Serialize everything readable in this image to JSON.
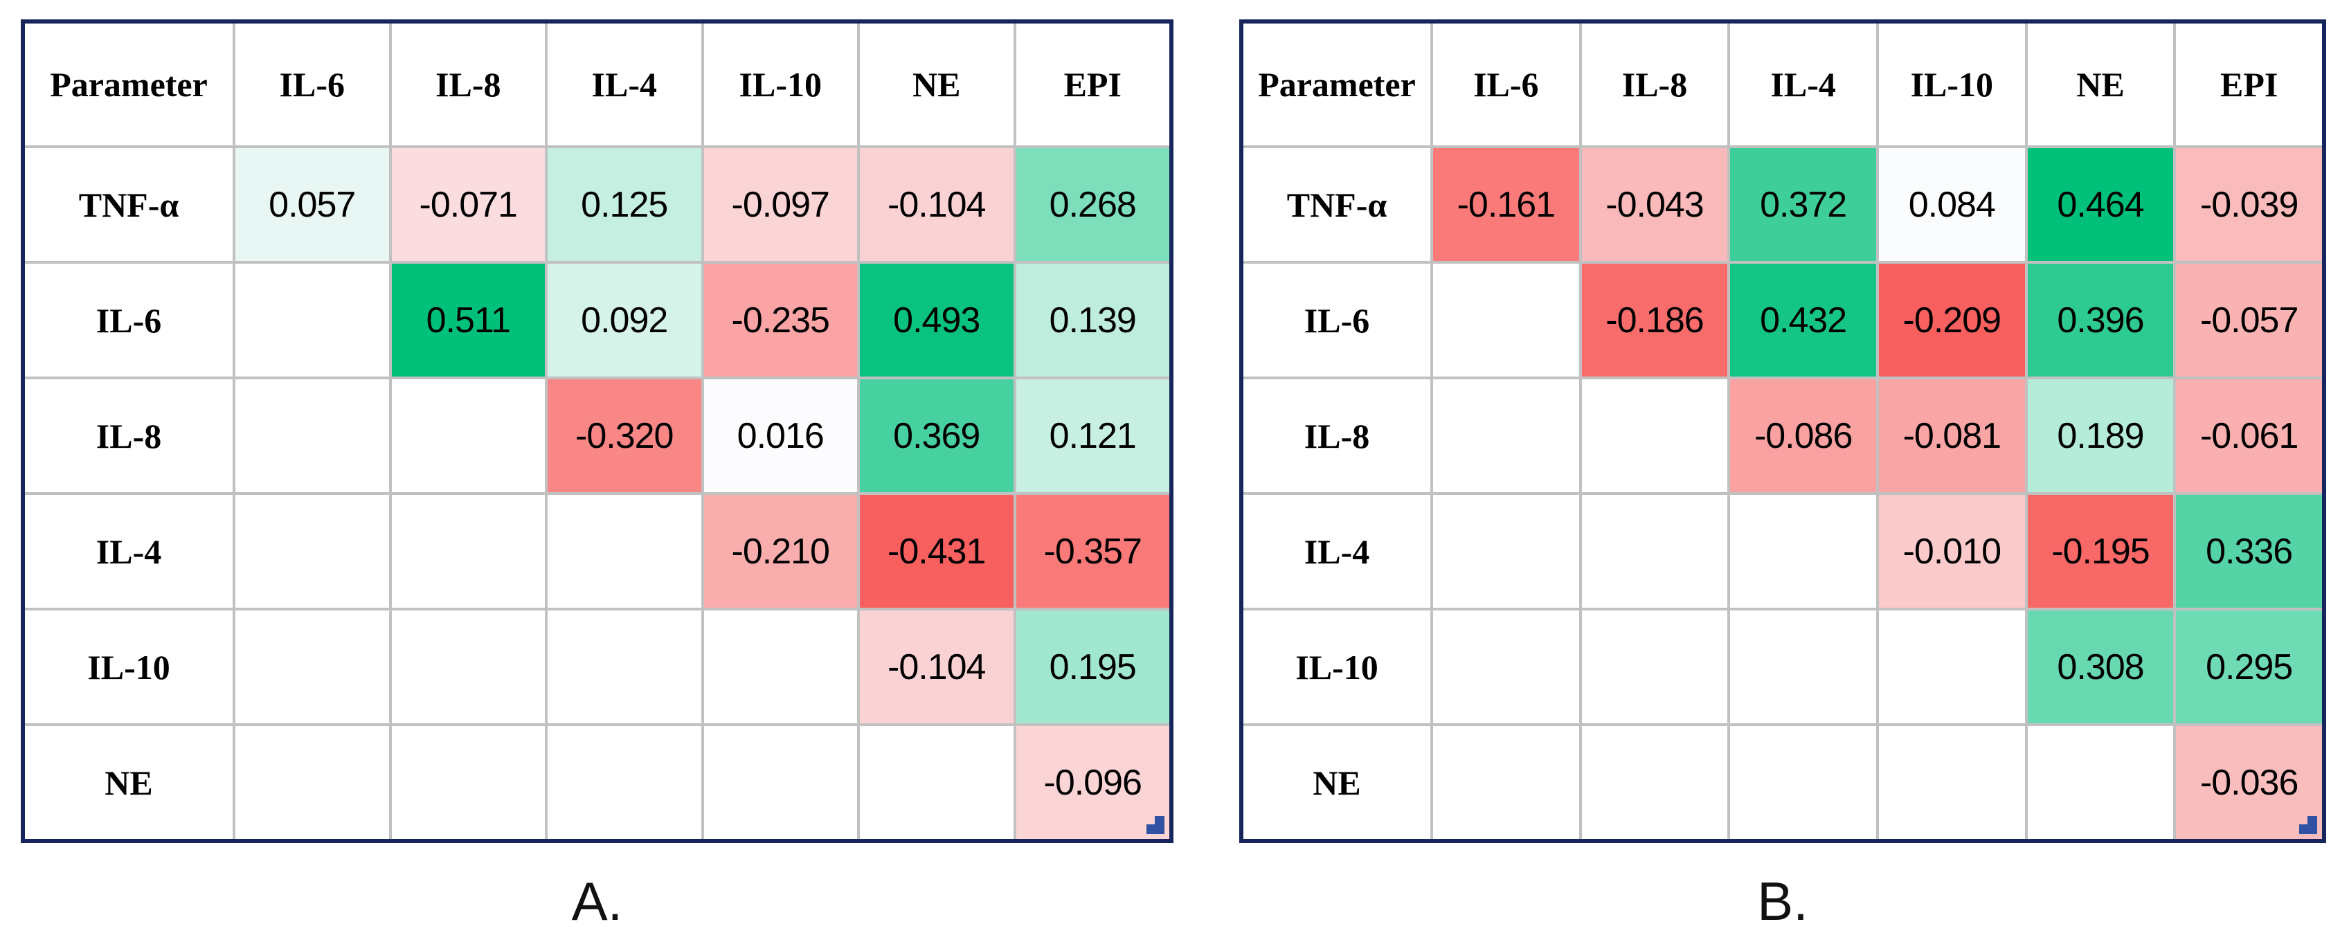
{
  "figure_name": "cytokine-correlation-heatmaps",
  "colors": {
    "outer_border_navy": "#16265C",
    "gridline_gray": "#C1C1C1",
    "positive_end_green": "#00C07A",
    "negative_end_red": "#F8605F",
    "mid_white": "#FCFCFE",
    "resize_handle_blue": "#3152A3",
    "text_black": "#000000"
  },
  "chart_data": [
    {
      "type": "heatmap",
      "panel_label": "A.",
      "title": "",
      "columns": [
        "Parameter",
        "IL-6",
        "IL-8",
        "IL-4",
        "IL-10",
        "NE",
        "EPI"
      ],
      "rows": [
        "TNF-α",
        "IL-6",
        "IL-8",
        "IL-4",
        "IL-10",
        "NE"
      ],
      "values": [
        [
          0.057,
          -0.071,
          0.125,
          -0.097,
          -0.104,
          0.268
        ],
        [
          null,
          0.511,
          0.092,
          -0.235,
          0.493,
          0.139
        ],
        [
          null,
          null,
          -0.32,
          0.016,
          0.369,
          0.121
        ],
        [
          null,
          null,
          null,
          -0.21,
          -0.431,
          -0.357
        ],
        [
          null,
          null,
          null,
          null,
          -0.104,
          0.195
        ],
        [
          null,
          null,
          null,
          null,
          null,
          -0.096
        ]
      ],
      "value_format": "3-decimals",
      "color_scale": {
        "negative_end": "#F8605F",
        "mid_color": "#FCFCFE",
        "positive_end": "#00C07A",
        "midpoint": "mean",
        "min_maps_to": "negative_end",
        "max_maps_to": "positive_end"
      }
    },
    {
      "type": "heatmap",
      "panel_label": "B.",
      "title": "",
      "columns": [
        "Parameter",
        "IL-6",
        "IL-8",
        "IL-4",
        "IL-10",
        "NE",
        "EPI"
      ],
      "rows": [
        "TNF-α",
        "IL-6",
        "IL-8",
        "IL-4",
        "IL-10",
        "NE"
      ],
      "values": [
        [
          -0.161,
          -0.043,
          0.372,
          0.084,
          0.464,
          -0.039
        ],
        [
          null,
          -0.186,
          0.432,
          -0.209,
          0.396,
          -0.057
        ],
        [
          null,
          null,
          -0.086,
          -0.081,
          0.189,
          -0.061
        ],
        [
          null,
          null,
          null,
          -0.01,
          -0.195,
          0.336
        ],
        [
          null,
          null,
          null,
          null,
          0.308,
          0.295
        ],
        [
          null,
          null,
          null,
          null,
          null,
          -0.036
        ]
      ],
      "value_format": "3-decimals",
      "color_scale": {
        "negative_end": "#F8605F",
        "mid_color": "#FCFCFE",
        "positive_end": "#00C07A",
        "midpoint": "mean",
        "min_maps_to": "negative_end",
        "max_maps_to": "positive_end"
      }
    }
  ]
}
